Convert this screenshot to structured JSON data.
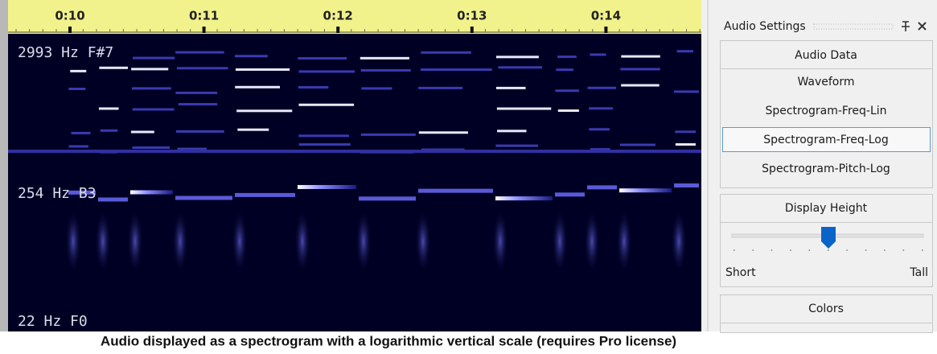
{
  "timeline": {
    "ticks": [
      "0:10",
      "0:11",
      "0:12",
      "0:13",
      "0:14"
    ]
  },
  "spectrogram": {
    "labels": [
      "2993 Hz F#7",
      "254 Hz B3",
      "22 Hz F0"
    ]
  },
  "panel": {
    "title": "Audio Settings",
    "audio_data": {
      "header": "Audio Data",
      "options": [
        "Waveform",
        "Spectrogram-Freq-Lin",
        "Spectrogram-Freq-Log",
        "Spectrogram-Pitch-Log"
      ],
      "selected": 2
    },
    "display_height": {
      "header": "Display Height",
      "min_label": "Short",
      "max_label": "Tall"
    },
    "colors": {
      "header": "Colors"
    }
  },
  "caption": "Audio displayed as a spectrogram with a logarithmic vertical scale (requires Pro license)"
}
